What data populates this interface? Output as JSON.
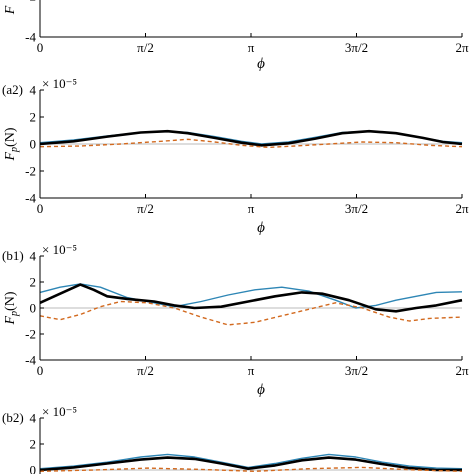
{
  "chart_data": [
    {
      "id": "top",
      "type": "line",
      "panel_label": "",
      "exponent_label": "",
      "xlabel": "ϕ",
      "ylabel": "",
      "ylabel_prefix": "F",
      "xlim": [
        0,
        6.2832
      ],
      "ylim": [
        -4,
        4
      ],
      "yticks": [
        -4,
        -2
      ],
      "x_ticks": [
        0,
        1.5708,
        3.1416,
        4.7124,
        6.2832
      ],
      "x_tick_labels": [
        "0",
        "π/2",
        "π",
        "3π/2",
        "2π"
      ],
      "series": []
    },
    {
      "id": "a2",
      "type": "line",
      "panel_label": "(a2)",
      "exponent_label": "× 10⁻⁵",
      "xlabel": "ϕ",
      "ylabel": "(N)",
      "ylabel_prefix": "F",
      "ylabel_sub": "p",
      "xlim": [
        0,
        6.2832
      ],
      "ylim": [
        -4,
        4
      ],
      "yticks": [
        -4,
        -2,
        0,
        2,
        4
      ],
      "x_ticks": [
        0,
        1.5708,
        3.1416,
        4.7124,
        6.2832
      ],
      "x_tick_labels": [
        "0",
        "π/2",
        "π",
        "3π/2",
        "2π"
      ],
      "series": [
        {
          "style": "blue",
          "x": [
            0,
            0.5,
            1.0,
            1.5,
            1.9,
            2.2,
            2.6,
            3.0,
            3.3,
            3.7,
            4.1,
            4.5,
            4.9,
            5.3,
            5.7,
            6.0,
            6.2832
          ],
          "y": [
            0.1,
            0.3,
            0.6,
            0.85,
            0.95,
            0.85,
            0.55,
            0.2,
            0.0,
            0.15,
            0.5,
            0.85,
            0.95,
            0.8,
            0.45,
            0.2,
            0.1
          ]
        },
        {
          "style": "black",
          "x": [
            0,
            0.5,
            1.0,
            1.5,
            1.9,
            2.2,
            2.6,
            3.0,
            3.3,
            3.7,
            4.1,
            4.5,
            4.9,
            5.3,
            5.7,
            6.0,
            6.2832
          ],
          "y": [
            0.0,
            0.2,
            0.55,
            0.85,
            0.95,
            0.8,
            0.45,
            0.1,
            -0.1,
            0.05,
            0.4,
            0.8,
            0.95,
            0.8,
            0.45,
            0.15,
            0.0
          ]
        },
        {
          "style": "orange",
          "x": [
            0,
            0.6,
            1.2,
            1.8,
            2.2,
            2.6,
            3.0,
            3.4,
            3.8,
            4.3,
            4.8,
            5.3,
            5.8,
            6.2832
          ],
          "y": [
            -0.2,
            -0.15,
            0.0,
            0.2,
            0.35,
            0.15,
            -0.1,
            -0.25,
            -0.15,
            0.0,
            0.15,
            0.1,
            -0.1,
            -0.2
          ]
        }
      ]
    },
    {
      "id": "b1",
      "type": "line",
      "panel_label": "(b1)",
      "exponent_label": "× 10⁻⁵",
      "xlabel": "ϕ",
      "ylabel": "(N)",
      "ylabel_prefix": "F",
      "ylabel_sub": "p",
      "xlim": [
        0,
        6.2832
      ],
      "ylim": [
        -4,
        4
      ],
      "yticks": [
        -4,
        -2,
        0,
        2,
        4
      ],
      "x_ticks": [
        0,
        1.5708,
        3.1416,
        4.7124,
        6.2832
      ],
      "x_tick_labels": [
        "0",
        "π/2",
        "π",
        "3π/2",
        "2π"
      ],
      "series": [
        {
          "style": "blue",
          "x": [
            0,
            0.3,
            0.6,
            0.9,
            1.3,
            1.7,
            2.0,
            2.4,
            2.8,
            3.2,
            3.6,
            4.0,
            4.4,
            4.7,
            5.0,
            5.3,
            5.6,
            5.9,
            6.2832
          ],
          "y": [
            1.2,
            1.6,
            1.85,
            1.6,
            0.8,
            0.4,
            0.1,
            0.5,
            1.0,
            1.4,
            1.6,
            1.3,
            0.6,
            0.0,
            0.2,
            0.6,
            0.9,
            1.2,
            1.25
          ]
        },
        {
          "style": "black",
          "x": [
            0,
            0.3,
            0.6,
            0.8,
            1.0,
            1.3,
            1.7,
            2.0,
            2.3,
            2.7,
            3.1,
            3.5,
            3.9,
            4.2,
            4.6,
            5.0,
            5.3,
            5.6,
            5.9,
            6.2832
          ],
          "y": [
            0.4,
            1.1,
            1.8,
            1.4,
            0.9,
            0.7,
            0.5,
            0.2,
            0.0,
            0.1,
            0.5,
            0.9,
            1.2,
            1.1,
            0.6,
            -0.1,
            -0.25,
            0.0,
            0.2,
            0.6
          ]
        },
        {
          "style": "orange",
          "x": [
            0,
            0.3,
            0.6,
            0.9,
            1.2,
            1.6,
            2.0,
            2.4,
            2.8,
            3.2,
            3.6,
            4.0,
            4.4,
            4.8,
            5.2,
            5.5,
            5.8,
            6.2832
          ],
          "y": [
            -0.6,
            -0.9,
            -0.5,
            0.1,
            0.5,
            0.4,
            0.0,
            -0.7,
            -1.3,
            -1.1,
            -0.6,
            -0.1,
            0.4,
            0.0,
            -0.7,
            -1.0,
            -0.8,
            -0.7
          ]
        }
      ]
    },
    {
      "id": "b2",
      "type": "line",
      "panel_label": "(b2)",
      "exponent_label": "× 10⁻⁵",
      "xlabel": "",
      "ylabel": "",
      "xlim": [
        0,
        6.2832
      ],
      "ylim": [
        -4,
        4
      ],
      "yticks": [
        0,
        2,
        4
      ],
      "x_ticks": [
        0,
        1.5708,
        3.1416,
        4.7124,
        6.2832
      ],
      "series": [
        {
          "style": "blue",
          "x": [
            0,
            0.5,
            1.0,
            1.5,
            1.9,
            2.3,
            2.7,
            3.1,
            3.5,
            3.9,
            4.3,
            4.7,
            5.1,
            5.5,
            5.9,
            6.2832
          ],
          "y": [
            0.1,
            0.3,
            0.6,
            1.0,
            1.2,
            1.0,
            0.6,
            0.2,
            0.5,
            0.9,
            1.2,
            1.0,
            0.6,
            0.3,
            0.15,
            0.1
          ]
        },
        {
          "style": "black",
          "x": [
            0,
            0.5,
            1.0,
            1.5,
            1.9,
            2.3,
            2.7,
            3.1,
            3.5,
            3.9,
            4.3,
            4.7,
            5.1,
            5.5,
            5.9,
            6.2832
          ],
          "y": [
            0.0,
            0.2,
            0.5,
            0.8,
            0.95,
            0.85,
            0.5,
            0.1,
            0.35,
            0.75,
            0.95,
            0.8,
            0.45,
            0.15,
            0.0,
            0.0
          ]
        },
        {
          "style": "orange",
          "x": [
            0,
            0.8,
            1.6,
            2.4,
            3.2,
            4.0,
            4.8,
            5.6,
            6.2832
          ],
          "y": [
            -0.1,
            0.0,
            0.15,
            0.05,
            -0.1,
            0.1,
            0.2,
            0.0,
            -0.1
          ]
        }
      ]
    }
  ],
  "colors": {
    "blue": "#2e86b5",
    "black": "#000000",
    "orange": "#d2691e",
    "zero_line": "#bbbbbb"
  }
}
